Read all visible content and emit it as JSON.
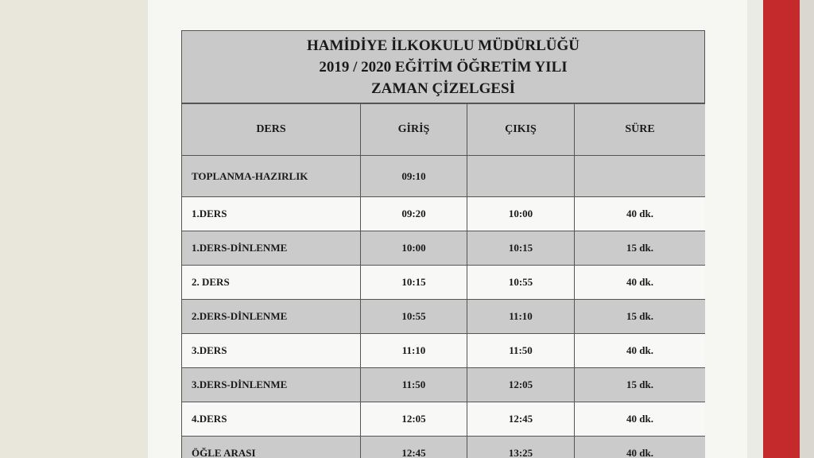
{
  "header": {
    "lines": [
      "HAMİDİYE İLKOKULU MÜDÜRLÜĞÜ",
      "2019 / 2020 EĞİTİM ÖĞRETİM YILI",
      "ZAMAN ÇİZELGESİ"
    ]
  },
  "table": {
    "columns": [
      "DERS",
      "GİRİŞ",
      "ÇIKIŞ",
      "SÜRE"
    ],
    "rows": [
      [
        "TOPLANMA-HAZIRLIK",
        "09:10"
      ],
      [
        "1.DERS",
        "09:20",
        "10:00",
        "40 dk."
      ],
      [
        "1.DERS-DİNLENME",
        "10:00",
        "10:15",
        "15 dk."
      ],
      [
        "2. DERS",
        "10:15",
        "10:55",
        "40 dk."
      ],
      [
        "2.DERS-DİNLENME",
        "10:55",
        "11:10",
        "15 dk."
      ],
      [
        "3.DERS",
        "11:10",
        "11:50",
        "40 dk."
      ],
      [
        "3.DERS-DİNLENME",
        "11:50",
        "12:05",
        "15 dk."
      ],
      [
        "4.DERS",
        "12:05",
        "12:45",
        "40 dk."
      ],
      [
        "ÖĞLE ARASI",
        "12:45",
        "13:25",
        "40 dk."
      ]
    ]
  }
}
